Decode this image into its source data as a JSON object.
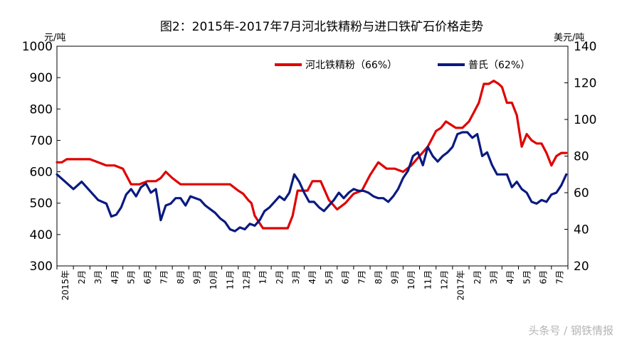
{
  "chart_data": {
    "type": "line",
    "title": "图2：2015年-2017年7月河北铁精粉与进口铁矿石价格走势",
    "y_left_label": "元/吨",
    "y_right_label": "美元/吨",
    "y_left_lim": [
      300,
      1000
    ],
    "y_right_lim": [
      20,
      140
    ],
    "y_left_ticks": [
      "300",
      "400",
      "500",
      "600",
      "700",
      "800",
      "900",
      "1000"
    ],
    "y_right_ticks": [
      "20",
      "40",
      "60",
      "80",
      "100",
      "120",
      "140"
    ],
    "x_tick_labels": [
      "2015年",
      "2月",
      "3月",
      "4月",
      "5月",
      "6月",
      "7月",
      "8月",
      "9月",
      "10月",
      "11月",
      "12月",
      "1月",
      "2月",
      "3月",
      "4月",
      "5月",
      "6月",
      "7月",
      "8月",
      "9月",
      "10月",
      "11月",
      "12月",
      "2017年",
      "2月",
      "3月",
      "4月",
      "5月",
      "6月",
      "7月"
    ],
    "legend_position": "top-right",
    "colors": {
      "hebei": "#e00000",
      "platts": "#0a1a80"
    },
    "series": [
      {
        "name": "河北铁精粉（66%）",
        "axis": "left",
        "color": "#e00000",
        "x": [
          0,
          0.3,
          0.6,
          1,
          1.5,
          2,
          2.5,
          3,
          3.5,
          4,
          4.5,
          5,
          5.5,
          6,
          6.3,
          6.6,
          7,
          7.5,
          8,
          8.5,
          9,
          9.5,
          10,
          10.5,
          11,
          11.3,
          11.6,
          11.8,
          12,
          12.5,
          13,
          13.5,
          14,
          14.3,
          14.6,
          14.9,
          15.2,
          15.5,
          16,
          16.5,
          17,
          17.5,
          18,
          18.5,
          19,
          19.5,
          20,
          20.5,
          21,
          21.5,
          22,
          22.5,
          23,
          23.3,
          23.6,
          23.9,
          24.2,
          24.6,
          25,
          25.3,
          25.6,
          25.9,
          26.2,
          26.5,
          26.8,
          27,
          27.3,
          27.6,
          27.9,
          28.2,
          28.5,
          28.8,
          29.1,
          29.4,
          29.7,
          30,
          30.3,
          30.6,
          30.9
        ],
        "values": [
          630,
          630,
          640,
          640,
          640,
          640,
          630,
          620,
          620,
          610,
          560,
          560,
          570,
          570,
          580,
          600,
          580,
          560,
          560,
          560,
          560,
          560,
          560,
          560,
          540,
          530,
          510,
          500,
          460,
          420,
          420,
          420,
          420,
          460,
          540,
          540,
          540,
          570,
          570,
          510,
          480,
          500,
          530,
          540,
          590,
          630,
          610,
          610,
          600,
          620,
          650,
          680,
          730,
          740,
          760,
          750,
          740,
          740,
          760,
          790,
          820,
          880,
          880,
          890,
          880,
          870,
          820,
          820,
          780,
          680,
          720,
          700,
          690,
          690,
          660,
          620,
          650,
          660,
          660
        ]
      },
      {
        "name": "普氏（62%）",
        "axis": "right",
        "color": "#0a1a80",
        "x": [
          0,
          0.5,
          1,
          1.5,
          2,
          2.5,
          3,
          3.3,
          3.6,
          3.9,
          4.2,
          4.5,
          4.8,
          5.1,
          5.4,
          5.7,
          6,
          6.3,
          6.6,
          6.9,
          7.2,
          7.5,
          7.8,
          8.1,
          8.4,
          8.7,
          9,
          9.3,
          9.6,
          9.9,
          10.2,
          10.5,
          10.8,
          11.1,
          11.4,
          11.7,
          12,
          12.3,
          12.6,
          12.9,
          13.2,
          13.5,
          13.8,
          14.1,
          14.4,
          14.7,
          15,
          15.3,
          15.6,
          15.9,
          16.2,
          16.5,
          16.8,
          17.1,
          17.4,
          17.7,
          18,
          18.3,
          18.6,
          18.9,
          19.2,
          19.5,
          19.8,
          20.1,
          20.4,
          20.7,
          21,
          21.3,
          21.6,
          21.9,
          22.2,
          22.5,
          22.8,
          23.1,
          23.4,
          23.7,
          24,
          24.3,
          24.6,
          24.9,
          25.2,
          25.5,
          25.8,
          26.1,
          26.4,
          26.7,
          27,
          27.3,
          27.6,
          27.9,
          28.2,
          28.5,
          28.8,
          29.1,
          29.4,
          29.7,
          30,
          30.3,
          30.6,
          30.9
        ],
        "values": [
          70,
          66,
          62,
          66,
          61,
          56,
          54,
          47,
          48,
          52,
          59,
          62,
          58,
          63,
          65,
          60,
          62,
          45,
          53,
          54,
          57,
          57,
          53,
          58,
          57,
          56,
          53,
          51,
          49,
          46,
          44,
          40,
          39,
          41,
          40,
          43,
          42,
          45,
          50,
          52,
          55,
          58,
          56,
          60,
          70,
          66,
          60,
          55,
          55,
          52,
          50,
          53,
          56,
          60,
          57,
          60,
          62,
          61,
          61,
          60,
          58,
          57,
          57,
          55,
          58,
          62,
          68,
          72,
          80,
          82,
          75,
          85,
          80,
          77,
          80,
          82,
          85,
          92,
          93,
          93,
          90,
          92,
          80,
          82,
          75,
          70,
          70,
          70,
          63,
          66,
          62,
          60,
          55,
          54,
          56,
          55,
          59,
          60,
          64,
          70
        ]
      }
    ]
  },
  "watermark": "头条号 / 钢铁情报"
}
